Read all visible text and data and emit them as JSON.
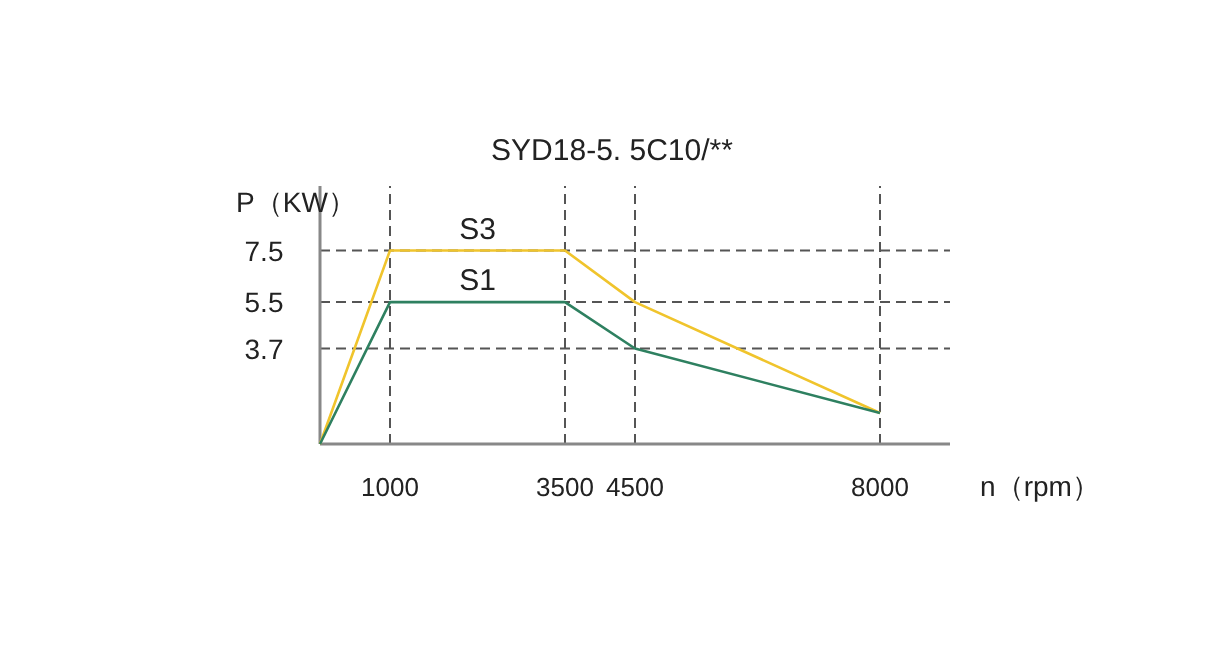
{
  "chart_data": {
    "type": "line",
    "title": "SYD18-5. 5C10/**",
    "xlabel": "n（rpm）",
    "ylabel": "P（KW）",
    "x": [
      0,
      1000,
      3500,
      4500,
      8000
    ],
    "series": [
      {
        "name": "S3",
        "color": "#f0c42c",
        "values": [
          0,
          7.5,
          7.5,
          5.5,
          1.2
        ]
      },
      {
        "name": "S1",
        "color": "#2e8060",
        "values": [
          0,
          5.5,
          5.5,
          3.7,
          1.2
        ]
      }
    ],
    "xlim": [
      0,
      9000
    ],
    "ylim": [
      0,
      10
    ],
    "xticks": [
      1000,
      3500,
      4500,
      8000
    ],
    "yticks": [
      3.7,
      5.5,
      7.5
    ],
    "ref_lines": [
      {
        "axis": "x",
        "value": 1000,
        "line_style": "dashed",
        "color": "#555555"
      },
      {
        "axis": "x",
        "value": 3500,
        "line_style": "dashed",
        "color": "#555555"
      },
      {
        "axis": "x",
        "value": 4500,
        "line_style": "dashed",
        "color": "#555555"
      },
      {
        "axis": "x",
        "value": 8000,
        "line_style": "dashed",
        "color": "#555555"
      },
      {
        "axis": "y",
        "value": 7.5,
        "line_style": "dashed",
        "color": "#555555"
      },
      {
        "axis": "y",
        "value": 5.5,
        "line_style": "dashed",
        "color": "#555555"
      },
      {
        "axis": "y",
        "value": 3.7,
        "line_style": "dashed",
        "color": "#555555"
      }
    ],
    "grid": false,
    "legend": false,
    "marker": "none",
    "line_style": "solid"
  }
}
